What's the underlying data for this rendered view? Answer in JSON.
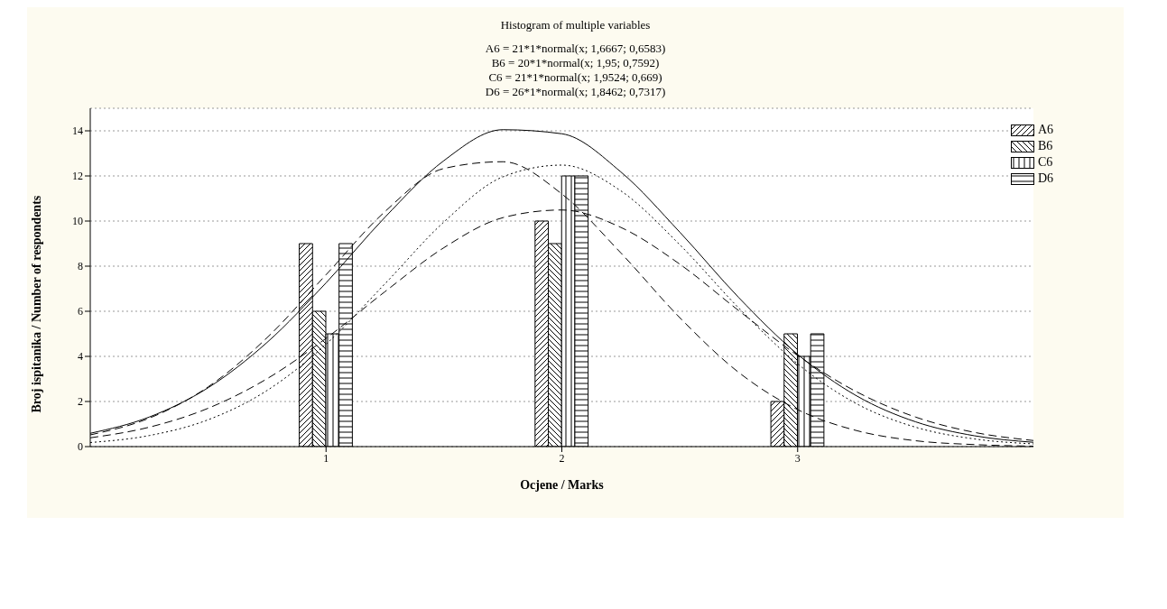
{
  "chart_data": {
    "type": "bar",
    "title": "Histogram of multiple variables",
    "subtitle": "A6 = 21*1*normal(x; 1,6667; 0,6583)\nB6 = 20*1*normal(x; 1,95; 0,7592)\nC6 = 21*1*normal(x; 1,9524; 0,669)\nD6 = 26*1*normal(x; 1,8462; 0,7317)",
    "xlabel": "Ocjene / Marks",
    "ylabel": "Broj ispitanika / Number of respondents",
    "x": [
      1,
      2,
      3
    ],
    "xlim": [
      0,
      4
    ],
    "xticks": [
      1,
      2,
      3
    ],
    "ylim": [
      0,
      15
    ],
    "yticks": [
      0,
      2,
      4,
      6,
      8,
      10,
      12,
      14
    ],
    "grid": "y",
    "legend": "top right",
    "series": [
      {
        "name": "A6",
        "color": "#000000",
        "values": [
          9,
          10,
          2
        ]
      },
      {
        "name": "B6",
        "color": "#000000",
        "values": [
          6,
          9,
          5
        ]
      },
      {
        "name": "C6",
        "color": "#000000",
        "values": [
          5,
          12,
          4
        ]
      },
      {
        "name": "D6",
        "color": "#000000",
        "values": [
          9,
          12,
          5
        ]
      },
      {
        "type": "line",
        "color": "#000000",
        "line_style": "dashed",
        "x": [
          0,
          0.25,
          0.5,
          0.75,
          1,
          1.25,
          1.5,
          1.75,
          2,
          2.25,
          2.5,
          2.75,
          3,
          3.25,
          3.5,
          3.75,
          4
        ],
        "values": [
          0.52,
          1.26,
          2.65,
          4.83,
          7.62,
          10.42,
          12.33,
          12.63,
          11.2,
          8.59,
          5.72,
          3.29,
          1.64,
          0.71,
          0.26,
          0.09,
          0.02
        ]
      },
      {
        "type": "line",
        "color": "#000000",
        "line_style": "dashed",
        "x": [
          0,
          0.25,
          0.5,
          0.75,
          1,
          1.25,
          1.5,
          1.75,
          2,
          2.25,
          2.5,
          2.75,
          3,
          3.25,
          3.5,
          3.75,
          4
        ],
        "values": [
          0.39,
          0.86,
          1.7,
          3.01,
          4.8,
          6.87,
          8.82,
          10.15,
          10.49,
          9.72,
          8.09,
          6.03,
          4.04,
          2.43,
          1.31,
          0.63,
          0.27
        ]
      },
      {
        "type": "line",
        "color": "#000000",
        "line_style": "dotted",
        "x": [
          0,
          0.25,
          0.5,
          0.75,
          1,
          1.25,
          1.5,
          1.75,
          2,
          2.25,
          2.5,
          2.75,
          3,
          3.25,
          3.5,
          3.75,
          4
        ],
        "values": [
          0.18,
          0.49,
          1.19,
          2.49,
          4.54,
          7.22,
          9.96,
          11.96,
          12.48,
          11.34,
          8.95,
          6.15,
          3.67,
          1.9,
          0.86,
          0.34,
          0.12
        ]
      },
      {
        "type": "line",
        "color": "#000000",
        "line_style": "solid",
        "x": [
          0,
          0.25,
          0.5,
          0.75,
          1,
          1.25,
          1.5,
          1.75,
          2,
          2.25,
          2.5,
          2.75,
          3,
          3.25,
          3.5,
          3.75,
          4
        ],
        "values": [
          0.59,
          1.31,
          2.61,
          4.62,
          7.26,
          10.17,
          12.68,
          14.05,
          13.87,
          12.18,
          9.51,
          6.61,
          4.09,
          2.25,
          1.1,
          0.48,
          0.19
        ]
      }
    ]
  }
}
